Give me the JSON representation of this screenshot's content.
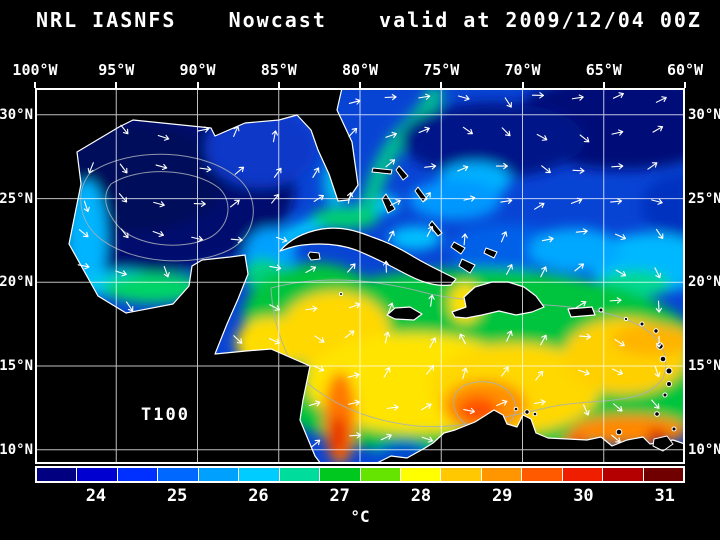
{
  "header": {
    "title_left": "NRL IASNFS",
    "title_center": "Nowcast",
    "title_right": "valid at 2009/12/04 00Z"
  },
  "map": {
    "field_label": "T100",
    "lon_ticks": [
      "100°W",
      "95°W",
      "90°W",
      "85°W",
      "80°W",
      "75°W",
      "70°W",
      "65°W",
      "60°W"
    ],
    "lat_ticks_left": [
      "30°N",
      "25°N",
      "20°N",
      "15°N",
      "10°N"
    ],
    "lat_ticks_right": [
      "30°N",
      "25°N",
      "20°N",
      "15°N",
      "10°N"
    ],
    "grid_color": "#ffffff",
    "coastline_color": "#ffffff",
    "land_color": "#000000",
    "contour_color": "#a8b0b8",
    "vector_color": "#ffffff"
  },
  "colorbar": {
    "unit_label": "°C",
    "tick_labels": [
      "24",
      "25",
      "26",
      "27",
      "28",
      "29",
      "30",
      "31"
    ],
    "tick_values": [
      24,
      25,
      26,
      27,
      28,
      29,
      30,
      31
    ],
    "range_min": 23.5,
    "range_max": 31.5,
    "segment_colors": [
      "#000080",
      "#0000d0",
      "#0030ff",
      "#0068ff",
      "#00a0ff",
      "#00ccff",
      "#00dc9c",
      "#00c81e",
      "#64e400",
      "#ffff00",
      "#ffc800",
      "#ff9600",
      "#ff5a00",
      "#f01e00",
      "#b40000",
      "#700000"
    ]
  }
}
